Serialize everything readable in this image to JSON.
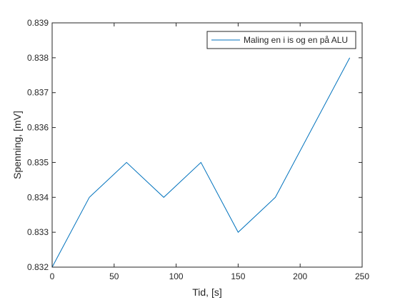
{
  "chart_data": {
    "type": "line",
    "title": "",
    "xlabel": "Tid, [s]",
    "ylabel": "Spenning, [mV]",
    "xlim": [
      0,
      250
    ],
    "ylim": [
      0.832,
      0.839
    ],
    "xticks": [
      0,
      50,
      100,
      150,
      200,
      250
    ],
    "yticks": [
      0.832,
      0.833,
      0.834,
      0.835,
      0.836,
      0.837,
      0.838,
      0.839
    ],
    "grid": false,
    "legend_position": "top-right",
    "series": [
      {
        "name": "Maling en i is og en på ALU",
        "color": "#0072BD",
        "x": [
          0,
          30,
          60,
          90,
          120,
          150,
          180,
          240
        ],
        "y": [
          0.832,
          0.834,
          0.835,
          0.834,
          0.835,
          0.833,
          0.834,
          0.838
        ]
      }
    ]
  }
}
